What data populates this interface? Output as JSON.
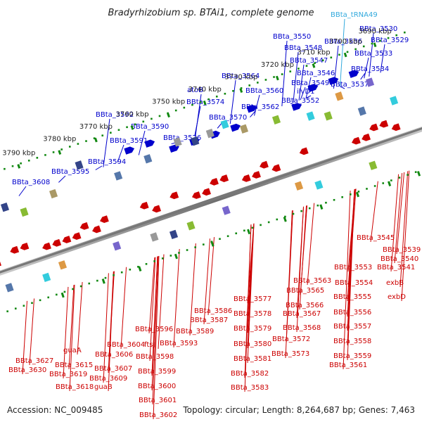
{
  "title": "Bradyrhizobium sp. BTAi1, complete genome",
  "footer": {
    "accession": "Accession: NC_009485",
    "topology": "Topology: circular; Length: 8,264,687 bp; Genes: 7,463"
  },
  "colors": {
    "forward": "#0000cc",
    "reverse": "#cc0000",
    "rna": "#33aadd",
    "tick": "#118811",
    "backbone": "#777777"
  },
  "ticks": [
    "3690 kbp",
    "3700 kbp",
    "3710 kbp",
    "3720 kbp",
    "3730 kbp",
    "3740 kbp",
    "3750 kbp",
    "3760 kbp",
    "3770 kbp",
    "3780 kbp",
    "3790 kbp"
  ],
  "labels_top": [
    "BBta_tRNA49",
    "BBta_3530",
    "BBta_3529",
    "BBta_3536",
    "BBta_3533",
    "BBta_3550",
    "BBta_3548",
    "BBta_3547",
    "BBta_3546",
    "BBta_3549",
    "BBta_3534",
    "BBta_3537",
    "ilvD1",
    "BBta_3552",
    "BBta_3564",
    "BBta_3560",
    "BBta_3562",
    "atoB",
    "BBta_3574",
    "BBta_3570",
    "BBta_3592",
    "BBta_3590",
    "BBta_3591",
    "BBta_3576",
    "BBta_3594",
    "BBta_3595",
    "BBta_3608"
  ],
  "labels_bottom": [
    "BBta_3545",
    "BBta_3539",
    "BBta_3540",
    "BBta_3541",
    "exbB",
    "exbD",
    "BBta_3553",
    "BBta_3554",
    "BBta_3555",
    "BBta_3556",
    "BBta_3557",
    "BBta_3558",
    "BBta_3559",
    "BBta_3561",
    "BBta_3563",
    "BBta_3565",
    "BBta_3566",
    "BBta_3567",
    "BBta_3568",
    "BBta_3572",
    "BBta_3573",
    "BBta_3577",
    "BBta_3578",
    "BBta_3579",
    "BBta_3580",
    "BBta_3581",
    "BBta_3582",
    "BBta_3583",
    "BBta_3586",
    "BBta_3587",
    "BBta_3589",
    "BBta_3596",
    "BBta_3593",
    "BBta_3598",
    "BBta_3599",
    "BBta_3600",
    "BBta_3601",
    "BBta_3602",
    "BBta_3604",
    "ftsJ",
    "BBta_3606",
    "BBta_3607",
    "BBta_3609",
    "BBta_3615",
    "guaA",
    "BBta_3619",
    "BBta_3618",
    "guaB",
    "BBta_3627",
    "BBta_3630"
  ]
}
